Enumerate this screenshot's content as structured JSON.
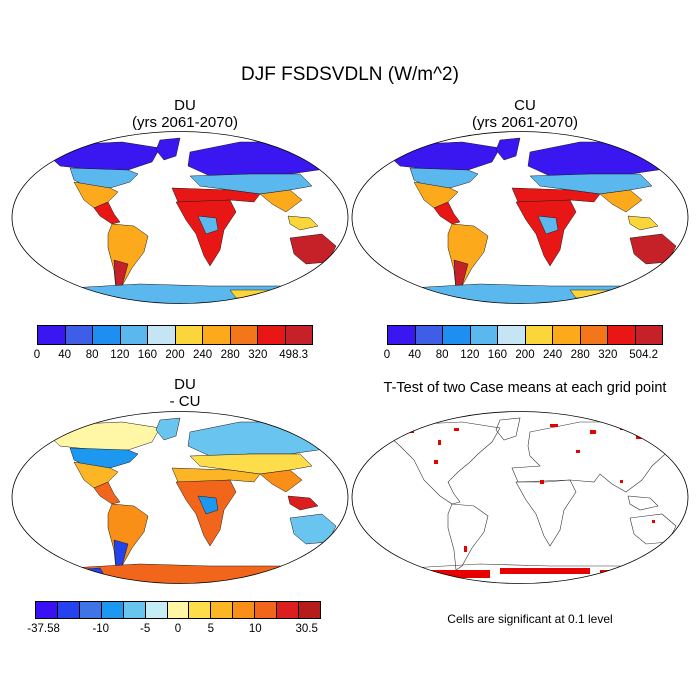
{
  "figure": {
    "title": "DJF FSDSVDLN (W/m^2)",
    "panels": [
      {
        "id": "du",
        "title": "DU",
        "subtitle": "(yrs 2061-2070)"
      },
      {
        "id": "cu",
        "title": "CU",
        "subtitle": "(yrs 2061-2070)"
      },
      {
        "id": "diff",
        "title": "DU",
        "subtitle": "- CU"
      },
      {
        "id": "ttest",
        "title": "T-Test of two Case means at each grid point"
      }
    ],
    "significance_note": "Cells are significant at 0.1 level"
  },
  "colorbars": {
    "du": {
      "colors": [
        "#3a16f0",
        "#3f5ee8",
        "#1e8ef0",
        "#5ab8ee",
        "#c5e4f4",
        "#fbd63a",
        "#fcaa1c",
        "#f4761a",
        "#e91616",
        "#c62128"
      ],
      "labels": [
        "0",
        "40",
        "80",
        "120",
        "160",
        "200",
        "240",
        "280",
        "320",
        "498.3"
      ]
    },
    "cu": {
      "colors": [
        "#3a16f0",
        "#3f5ee8",
        "#1e8ef0",
        "#5ab8ee",
        "#c5e4f4",
        "#fbd63a",
        "#fcaa1c",
        "#f4761a",
        "#e91616",
        "#c62128"
      ],
      "labels": [
        "0",
        "40",
        "80",
        "120",
        "160",
        "200",
        "240",
        "280",
        "320",
        "504.2"
      ]
    },
    "diff": {
      "colors": [
        "#3a10f5",
        "#2542ef",
        "#3f74e6",
        "#1d98f0",
        "#6ac4f0",
        "#c6ecf5",
        "#fff7a6",
        "#fddd4a",
        "#fcb524",
        "#f98f16",
        "#f2661c",
        "#dd1e1e",
        "#b71c1c"
      ],
      "labels": [
        "-37.58",
        "-10",
        "-5",
        "0",
        "5",
        "10",
        "30.5"
      ]
    }
  },
  "colors": {
    "ocean": "#ffffff",
    "coast": "#000000",
    "significant": "#e60000"
  }
}
